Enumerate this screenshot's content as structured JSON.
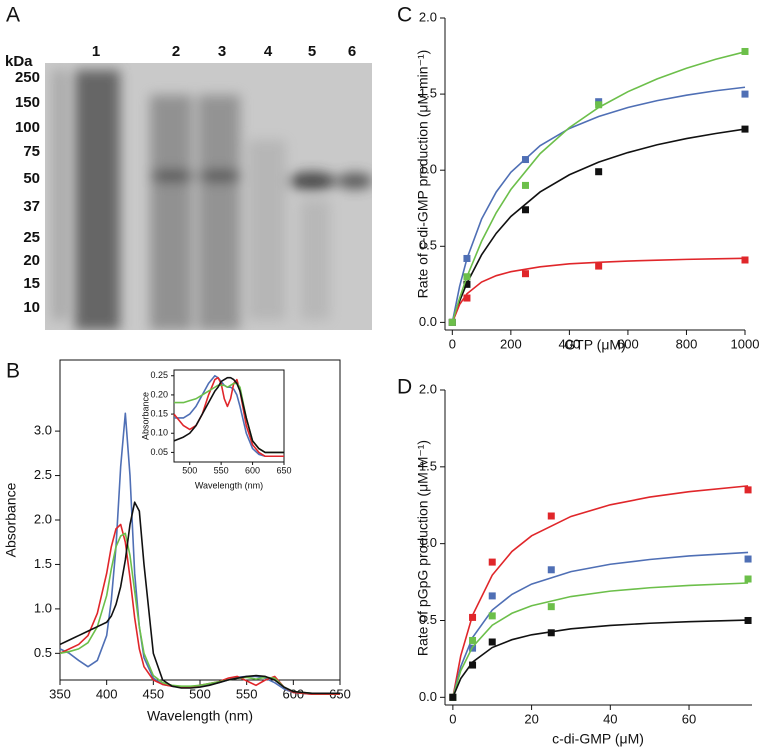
{
  "gel": {
    "label": "A",
    "unit": "kDa",
    "markers": [
      250,
      150,
      100,
      75,
      50,
      37,
      25,
      20,
      15,
      10
    ],
    "lanes": [
      "1",
      "2",
      "3",
      "4",
      "5",
      "6"
    ]
  },
  "chart_data": [
    {
      "type": "line",
      "label": "B",
      "x_label": "Wavelength (nm)",
      "y_label": "Absorbance",
      "frame": true,
      "x": [
        350,
        360,
        370,
        380,
        390,
        400,
        405,
        410,
        415,
        420,
        425,
        430,
        435,
        440,
        450,
        460,
        470,
        480,
        490,
        500,
        510,
        520,
        530,
        540,
        550,
        560,
        570,
        580,
        590,
        600,
        620,
        650
      ],
      "xlim": [
        350,
        650
      ],
      "xticks": [
        350,
        400,
        450,
        500,
        550,
        600,
        650
      ],
      "ylim": [
        0.2,
        3.8
      ],
      "yticks": [
        0.5,
        {
          "value": 1.0,
          "label": "1.0"
        },
        1.5,
        {
          "value": 2.0,
          "label": "2.0"
        },
        2.5,
        {
          "value": 3.0,
          "label": "3.0"
        }
      ],
      "series": [
        {
          "color": "#4f6fb5",
          "values": [
            0.55,
            0.5,
            0.42,
            0.35,
            0.42,
            0.7,
            1.1,
            1.7,
            2.6,
            3.2,
            2.5,
            1.4,
            0.8,
            0.45,
            0.22,
            0.15,
            0.13,
            0.12,
            0.12,
            0.13,
            0.15,
            0.17,
            0.2,
            0.23,
            0.24,
            0.24,
            0.22,
            0.17,
            0.1,
            0.06,
            0.04,
            0.04
          ]
        },
        {
          "color": "#e0262a",
          "values": [
            0.5,
            0.55,
            0.6,
            0.7,
            0.95,
            1.4,
            1.7,
            1.9,
            1.95,
            1.75,
            1.35,
            0.9,
            0.55,
            0.35,
            0.2,
            0.15,
            0.13,
            0.12,
            0.12,
            0.14,
            0.16,
            0.18,
            0.22,
            0.24,
            0.19,
            0.14,
            0.2,
            0.24,
            0.12,
            0.06,
            0.04,
            0.04
          ]
        },
        {
          "color": "#6cbf4a",
          "values": [
            0.5,
            0.52,
            0.55,
            0.62,
            0.8,
            1.15,
            1.45,
            1.7,
            1.82,
            1.85,
            1.6,
            1.2,
            0.8,
            0.5,
            0.25,
            0.17,
            0.14,
            0.13,
            0.13,
            0.14,
            0.16,
            0.18,
            0.2,
            0.22,
            0.23,
            0.21,
            0.23,
            0.22,
            0.12,
            0.07,
            0.05,
            0.05
          ]
        },
        {
          "color": "#111111",
          "values": [
            0.6,
            0.65,
            0.7,
            0.75,
            0.8,
            0.85,
            0.92,
            1.05,
            1.25,
            1.55,
            1.95,
            2.2,
            2.1,
            1.5,
            0.5,
            0.2,
            0.13,
            0.11,
            0.11,
            0.12,
            0.14,
            0.17,
            0.2,
            0.22,
            0.24,
            0.25,
            0.24,
            0.2,
            0.12,
            0.07,
            0.05,
            0.05
          ]
        }
      ]
    },
    {
      "type": "line",
      "x_label": "Wavelength (nm)",
      "y_label": "Absorbance",
      "frame": true,
      "x": [
        475,
        490,
        500,
        510,
        520,
        530,
        540,
        545,
        550,
        555,
        560,
        565,
        570,
        575,
        580,
        590,
        600,
        610,
        620,
        650
      ],
      "xlim": [
        475,
        650
      ],
      "xticks": [
        500,
        550,
        600,
        650
      ],
      "ylim": [
        0.025,
        0.265
      ],
      "yticks": [
        0.05,
        {
          "value": 0.1,
          "label": "0.10"
        },
        0.15,
        {
          "value": 0.2,
          "label": "0.20"
        },
        0.25
      ],
      "series": [
        {
          "color": "#4f6fb5",
          "values": [
            0.14,
            0.14,
            0.15,
            0.17,
            0.2,
            0.23,
            0.25,
            0.245,
            0.235,
            0.225,
            0.22,
            0.22,
            0.215,
            0.2,
            0.17,
            0.1,
            0.06,
            0.045,
            0.04,
            0.04
          ]
        },
        {
          "color": "#e0262a",
          "values": [
            0.15,
            0.12,
            0.11,
            0.12,
            0.15,
            0.2,
            0.24,
            0.245,
            0.23,
            0.19,
            0.17,
            0.19,
            0.23,
            0.24,
            0.21,
            0.12,
            0.07,
            0.05,
            0.04,
            0.04
          ]
        },
        {
          "color": "#6cbf4a",
          "values": [
            0.18,
            0.18,
            0.185,
            0.19,
            0.2,
            0.21,
            0.22,
            0.225,
            0.225,
            0.225,
            0.22,
            0.225,
            0.23,
            0.23,
            0.22,
            0.14,
            0.08,
            0.06,
            0.05,
            0.05
          ]
        },
        {
          "color": "#111111",
          "values": [
            0.08,
            0.09,
            0.1,
            0.12,
            0.15,
            0.18,
            0.21,
            0.22,
            0.235,
            0.24,
            0.245,
            0.245,
            0.24,
            0.23,
            0.21,
            0.14,
            0.08,
            0.06,
            0.05,
            0.05
          ]
        }
      ]
    },
    {
      "type": "scatter",
      "label": "C",
      "x_label": "GTP (μM)",
      "y_label": "Rate of c-di-GMP production (μM min⁻¹)",
      "frame": false,
      "x": [
        0,
        50,
        250,
        500,
        1000
      ],
      "fit_x": [
        0,
        25,
        50,
        100,
        150,
        200,
        300,
        400,
        500,
        600,
        700,
        800,
        900,
        1000
      ],
      "xlim": [
        -25,
        1000
      ],
      "xticks": [
        0,
        200,
        400,
        600,
        800,
        1000
      ],
      "ylim": [
        -0.05,
        2.0
      ],
      "yticks": [
        {
          "value": 0,
          "label": "0.0"
        },
        0.5,
        {
          "value": 1,
          "label": "1.0"
        },
        1.5,
        {
          "value": 2,
          "label": "2.0"
        }
      ],
      "series": [
        {
          "color": "#111111",
          "values": [
            0,
            0.25,
            0.74,
            0.99,
            1.27
          ],
          "fit": [
            0,
            0.14,
            0.258,
            0.444,
            0.585,
            0.696,
            0.857,
            0.97,
            1.053,
            1.116,
            1.167,
            1.208,
            1.241,
            1.27
          ]
        },
        {
          "color": "#e0262a",
          "values": [
            0,
            0.16,
            0.32,
            0.37,
            0.41
          ],
          "fit": [
            0,
            0.118,
            0.188,
            0.265,
            0.307,
            0.333,
            0.365,
            0.385,
            0.395,
            0.403,
            0.409,
            0.414,
            0.418,
            0.421
          ]
        },
        {
          "color": "#4f6fb5",
          "values": [
            0,
            0.42,
            1.07,
            1.45,
            1.5
          ],
          "fit": [
            0,
            0.237,
            0.419,
            0.679,
            0.857,
            0.986,
            1.161,
            1.274,
            1.353,
            1.412,
            1.457,
            1.493,
            1.522,
            1.545
          ]
        },
        {
          "color": "#6cbf4a",
          "values": [
            0,
            0.3,
            0.9,
            1.43,
            1.78
          ],
          "fit": [
            0,
            0.16,
            0.3,
            0.533,
            0.72,
            0.873,
            1.109,
            1.28,
            1.412,
            1.516,
            1.6,
            1.67,
            1.729,
            1.778
          ]
        }
      ]
    },
    {
      "type": "scatter",
      "label": "D",
      "x_label": "c-di-GMP (μM)",
      "y_label": "Rate of pGpG production (μM M⁻¹)",
      "frame": false,
      "x": [
        0,
        5,
        10,
        25,
        75
      ],
      "fit_x": [
        0,
        2,
        5,
        10,
        15,
        20,
        30,
        40,
        50,
        60,
        75
      ],
      "xlim": [
        -2,
        76
      ],
      "xticks": [
        0,
        20,
        40,
        60
      ],
      "ylim": [
        -0.05,
        2.0
      ],
      "yticks": [
        {
          "value": 0,
          "label": "0.0"
        },
        0.5,
        {
          "value": 1,
          "label": "1.0"
        },
        1.5,
        {
          "value": 2,
          "label": "2.0"
        }
      ],
      "series": [
        {
          "color": "#e0262a",
          "values": [
            0,
            0.52,
            0.88,
            1.18,
            1.35
          ],
          "fit": [
            0,
            0.27,
            0.534,
            0.795,
            0.949,
            1.051,
            1.177,
            1.253,
            1.303,
            1.338,
            1.376
          ]
        },
        {
          "color": "#4f6fb5",
          "values": [
            0,
            0.32,
            0.66,
            0.83,
            0.9
          ],
          "fit": [
            0,
            0.2,
            0.389,
            0.568,
            0.67,
            0.737,
            0.818,
            0.866,
            0.897,
            0.92,
            0.943
          ]
        },
        {
          "color": "#6cbf4a",
          "values": [
            0,
            0.37,
            0.53,
            0.59,
            0.77
          ],
          "fit": [
            0,
            0.173,
            0.328,
            0.469,
            0.547,
            0.596,
            0.656,
            0.691,
            0.713,
            0.728,
            0.744
          ]
        },
        {
          "color": "#111111",
          "values": [
            0,
            0.21,
            0.36,
            0.42,
            0.5
          ],
          "fit": [
            0,
            0.122,
            0.229,
            0.324,
            0.375,
            0.407,
            0.446,
            0.468,
            0.482,
            0.492,
            0.503
          ]
        }
      ]
    }
  ]
}
